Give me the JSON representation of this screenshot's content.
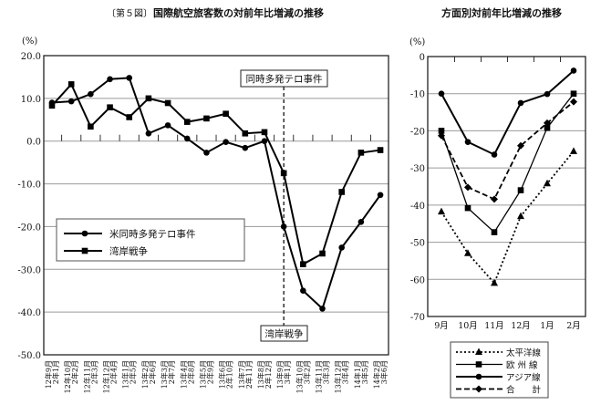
{
  "header": {
    "figure_label": "〔第５図〕",
    "left_title": "国際航空旅客数の対前年比増減の推移",
    "right_title": "方面別対前年比増減の推移"
  },
  "chart_data": [
    {
      "type": "line",
      "title": "国際航空旅客数の対前年比増減の推移",
      "ylabel": "(%)",
      "ylim": [
        -50,
        20
      ],
      "yticks": [
        "20.0",
        "10.0",
        "0.0",
        "-10.0",
        "-20.0",
        "-30.0",
        "-40.0",
        "-50.0"
      ],
      "ytick_values": [
        20,
        10,
        0,
        -10,
        -20,
        -30,
        -40,
        -50
      ],
      "grid": true,
      "legend_placement": "center-left",
      "categories": [
        [
          "12年9月",
          "2年1月"
        ],
        [
          "12年10月",
          "2年2月"
        ],
        [
          "12年11月",
          "2年3月"
        ],
        [
          "12年12月",
          "2年4月"
        ],
        [
          "13年1月",
          "2年5月"
        ],
        [
          "13年2月",
          "2年6月"
        ],
        [
          "13年3月",
          "2年7月"
        ],
        [
          "13年4月",
          "2年8月"
        ],
        [
          "13年5月",
          "2年9月"
        ],
        [
          "13年6月",
          "2年10月"
        ],
        [
          "13年7月",
          "2年11月"
        ],
        [
          "13年8月",
          "2年12月"
        ],
        [
          "13年9月",
          "3年1月"
        ],
        [
          "13年10月",
          "3年2月"
        ],
        [
          "13年11月",
          "3年3月"
        ],
        [
          "13年12月",
          "3年4月"
        ],
        [
          "14年1月",
          "3年5月"
        ],
        [
          "14年2月",
          "3年6月"
        ]
      ],
      "series": [
        {
          "name": "米同時多発テロ事件",
          "marker": "circle",
          "values": [
            9.0,
            9.3,
            11.0,
            14.5,
            14.8,
            1.8,
            3.7,
            0.6,
            -2.7,
            -0.2,
            -1.6,
            0.0,
            -20.0,
            -35.0,
            -39.2,
            -24.9,
            -18.9,
            -12.6
          ]
        },
        {
          "name": "湾岸戦争",
          "marker": "square",
          "values": [
            8.3,
            13.3,
            3.4,
            7.9,
            5.6,
            10.0,
            8.9,
            4.5,
            5.3,
            6.4,
            1.8,
            2.1,
            -7.5,
            -28.8,
            -26.3,
            -11.9,
            -2.7,
            -2.1
          ]
        }
      ],
      "annotations": [
        {
          "text": "同時多発テロ事件",
          "category_index": 12
        },
        {
          "text": "湾岸戦争",
          "category_index": 12
        }
      ]
    },
    {
      "type": "line",
      "title": "方面別対前年比増減の推移",
      "ylabel": "(%)",
      "ylim": [
        -70,
        0
      ],
      "yticks": [
        "0",
        "-10",
        "-20",
        "-30",
        "-40",
        "-50",
        "-60",
        "-70"
      ],
      "ytick_values": [
        0,
        -10,
        -20,
        -30,
        -40,
        -50,
        -60,
        -70
      ],
      "grid": true,
      "legend_placement": "bottom",
      "categories": [
        "9月",
        "10月",
        "11月",
        "12月",
        "1月",
        "2月"
      ],
      "series": [
        {
          "name": "太平洋線",
          "marker": "triangle",
          "style": "dotted",
          "values": [
            -41.8,
            -53.0,
            -61.0,
            -43.0,
            -34.2,
            -25.5
          ]
        },
        {
          "name": "欧 州 線",
          "marker": "square",
          "style": "thin-solid",
          "values": [
            -20.0,
            -40.8,
            -47.3,
            -36.0,
            -19.2,
            -10.0
          ]
        },
        {
          "name": "アジア線",
          "marker": "circle",
          "style": "solid",
          "values": [
            -10.0,
            -23.0,
            -26.4,
            -12.5,
            -10.1,
            -3.8
          ]
        },
        {
          "name": "合　　計",
          "marker": "diamond",
          "style": "dashed",
          "values": [
            -21.3,
            -35.2,
            -38.4,
            -24.0,
            -17.9,
            -12.2
          ]
        }
      ]
    }
  ]
}
